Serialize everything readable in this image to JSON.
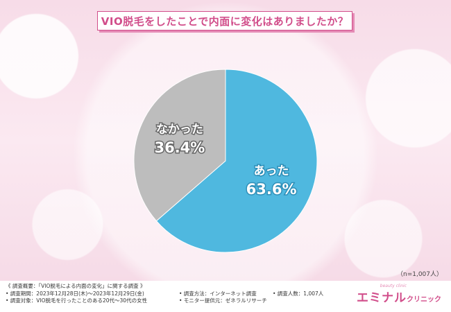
{
  "title": "VIO脱毛をしたことで内面に変化はありましたか？",
  "sample_note": "（n=1,007人）",
  "colors": {
    "accent": "#d14d8a",
    "yes": "#4fb8df",
    "no": "#bdbdbd"
  },
  "chart_data": {
    "type": "pie",
    "slices": [
      {
        "label": "あった",
        "value": 63.6,
        "display": "63.6%"
      },
      {
        "label": "なかった",
        "value": 36.4,
        "display": "36.4%"
      }
    ]
  },
  "footer": {
    "summary": "《 調査概要：「VIO脱毛による内面の変化」に関する調査 》",
    "period": "• 調査期間：2023年12月28日(木)～2023年12月29日(金)",
    "target": "• 調査対象：VIO脱毛を行ったことのある20代～30代の女性",
    "method": "• 調査方法：インターネット調査",
    "provider": "• モニター提供元：ゼネラルリサーチ",
    "count": "• 調査人数：1,007人"
  },
  "logo": {
    "main": "エミナル",
    "sub": "クリニック",
    "tag": "beauty clinic"
  }
}
